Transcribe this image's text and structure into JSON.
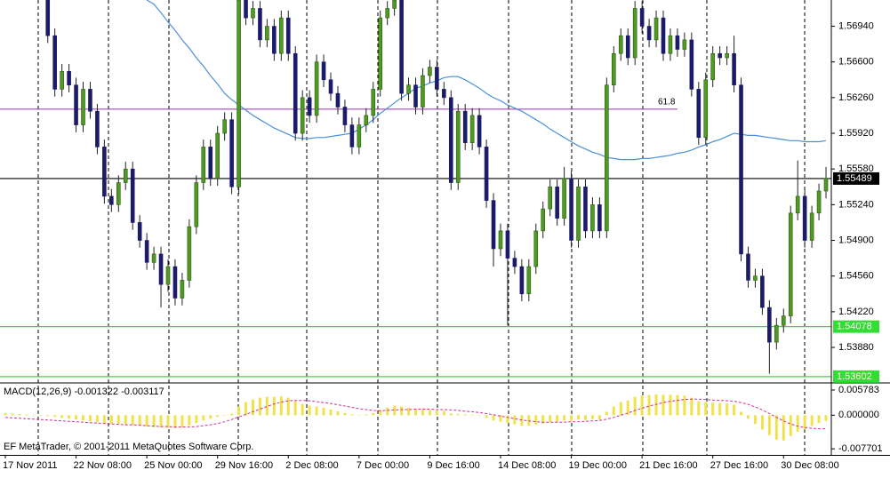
{
  "chart_data": [
    {
      "type": "candlestick",
      "categories": [
        "17 Nov 2011",
        null,
        null,
        null,
        null,
        null,
        null,
        null,
        null,
        null,
        "22 Nov 08:00",
        null,
        null,
        null,
        null,
        null,
        null,
        null,
        null,
        null,
        "25 Nov 00:00",
        null,
        null,
        null,
        null,
        null,
        null,
        null,
        null,
        null,
        "29 Nov 16:00",
        null,
        null,
        null,
        null,
        null,
        null,
        null,
        null,
        null,
        "2 Dec 08:00",
        null,
        null,
        null,
        null,
        null,
        null,
        null,
        null,
        null,
        "7 Dec 00:00",
        null,
        null,
        null,
        null,
        null,
        null,
        null,
        null,
        null,
        "9 Dec 16:00",
        null,
        null,
        null,
        null,
        null,
        null,
        null,
        null,
        null,
        "14 Dec 08:00",
        null,
        null,
        null,
        null,
        null,
        null,
        null,
        null,
        null,
        "19 Dec 00:00",
        null,
        null,
        null,
        null,
        null,
        null,
        null,
        null,
        null,
        "21 Dec 16:00",
        null,
        null,
        null,
        null,
        null,
        null,
        null,
        null,
        null,
        "27 Dec 16:00",
        null,
        null,
        null,
        null,
        null,
        null,
        null,
        null,
        null,
        "30 Dec 08:00",
        null,
        null,
        null,
        null,
        null,
        null
      ],
      "open": [
        null,
        null,
        null,
        null,
        null,
        null,
        1.5719,
        1.5685,
        1.5634,
        1.5651,
        1.5638,
        1.56,
        1.5634,
        1.5613,
        1.5579,
        1.5532,
        1.5524,
        1.5545,
        1.5558,
        1.5507,
        1.549,
        1.5469,
        1.5477,
        1.5448,
        1.5465,
        1.5435,
        1.5452,
        1.5503,
        1.5545,
        1.5579,
        1.5549,
        1.5592,
        1.5605,
        1.5541,
        1.5719,
        1.5702,
        1.5711,
        1.5681,
        1.5694,
        1.5668,
        1.5702,
        1.5668,
        1.5592,
        1.5626,
        1.5609,
        1.566,
        1.5643,
        1.563,
        1.5617,
        1.56,
        1.5579,
        1.56,
        1.5609,
        1.5634,
        1.5702,
        1.5711,
        1.5719,
        1.563,
        1.5638,
        1.5617,
        1.5647,
        1.5655,
        1.5634,
        1.5626,
        1.5545,
        1.5613,
        1.5583,
        1.5609,
        1.5579,
        1.5528,
        1.5482,
        1.5499,
        1.5473,
        1.5465,
        1.5439,
        1.5465,
        1.5499,
        1.552,
        1.5541,
        1.5511,
        1.5549,
        1.549,
        1.5541,
        1.5499,
        1.5524,
        1.5499,
        1.5638,
        1.5668,
        1.5685,
        1.5664,
        1.5711,
        1.5694,
        1.5681,
        1.5702,
        1.5668,
        1.5685,
        1.5672,
        1.5681,
        1.5634,
        1.5588,
        1.5643,
        1.5668,
        1.5664,
        1.5668,
        1.5638,
        1.5477,
        1.5452,
        1.5456,
        1.5426,
        1.5393,
        1.5409,
        1.5418,
        1.5516,
        1.5532,
        1.549,
        1.5516,
        1.5537
      ],
      "high": [
        null,
        null,
        null,
        null,
        null,
        null,
        1.5726,
        1.5692,
        1.5658,
        1.5658,
        1.5645,
        1.5641,
        1.5641,
        1.562,
        1.5586,
        1.5539,
        1.5552,
        1.5565,
        1.5565,
        1.5514,
        1.5497,
        1.5484,
        1.5484,
        1.5472,
        1.5472,
        1.5459,
        1.551,
        1.5552,
        1.5586,
        1.5586,
        1.5599,
        1.5612,
        1.5612,
        1.5726,
        1.5726,
        1.5718,
        1.5718,
        1.5701,
        1.5701,
        1.5709,
        1.5709,
        1.5675,
        1.5633,
        1.5633,
        1.5667,
        1.5667,
        1.565,
        1.5637,
        1.5624,
        1.5607,
        1.5607,
        1.5616,
        1.5641,
        1.5709,
        1.5718,
        1.5726,
        1.5726,
        1.5645,
        1.5645,
        1.5654,
        1.5662,
        1.5662,
        1.5641,
        1.5633,
        1.562,
        1.562,
        1.5616,
        1.5616,
        1.5586,
        1.5535,
        1.5506,
        1.5506,
        1.548,
        1.5472,
        1.5472,
        1.5506,
        1.5527,
        1.5548,
        1.5548,
        1.556,
        1.5556,
        1.5548,
        1.5548,
        1.5531,
        1.5531,
        1.5645,
        1.5675,
        1.5692,
        1.5692,
        1.5718,
        1.5718,
        1.5701,
        1.5709,
        1.5709,
        1.5692,
        1.5692,
        1.5688,
        1.5688,
        1.5641,
        1.565,
        1.5675,
        1.5675,
        1.5675,
        1.5685,
        1.5645,
        1.5484,
        1.5463,
        1.5463,
        1.5433,
        1.5416,
        1.5425,
        1.5523,
        1.5566,
        1.5539,
        1.5523,
        1.5544,
        1.556
      ],
      "low": [
        null,
        null,
        null,
        null,
        null,
        null,
        1.5678,
        1.5627,
        1.5627,
        1.5631,
        1.5593,
        1.5593,
        1.5606,
        1.5572,
        1.5525,
        1.5517,
        1.5517,
        1.5538,
        1.55,
        1.5483,
        1.5462,
        1.5462,
        1.5426,
        1.5441,
        1.5428,
        1.5428,
        1.5445,
        1.5496,
        1.5538,
        1.5542,
        1.5542,
        1.5585,
        1.5534,
        1.5534,
        1.5695,
        1.5695,
        1.5674,
        1.5674,
        1.5661,
        1.5661,
        1.5661,
        1.5585,
        1.5585,
        1.5602,
        1.5602,
        1.5636,
        1.5623,
        1.561,
        1.5593,
        1.5572,
        1.5572,
        1.5593,
        1.5602,
        1.5627,
        1.5695,
        1.5704,
        1.5623,
        1.5623,
        1.561,
        1.561,
        1.564,
        1.5627,
        1.5619,
        1.5538,
        1.5538,
        1.5576,
        1.5576,
        1.5572,
        1.5521,
        1.5465,
        1.5475,
        1.5409,
        1.5458,
        1.5432,
        1.5432,
        1.5458,
        1.5492,
        1.5513,
        1.5504,
        1.5504,
        1.5483,
        1.5483,
        1.5492,
        1.5492,
        1.5492,
        1.5492,
        1.5631,
        1.5661,
        1.5657,
        1.5657,
        1.5687,
        1.5674,
        1.5674,
        1.5661,
        1.5661,
        1.5665,
        1.5665,
        1.5627,
        1.5581,
        1.5581,
        1.5636,
        1.5657,
        1.5657,
        1.5631,
        1.547,
        1.5445,
        1.5445,
        1.5419,
        1.5363,
        1.5386,
        1.5402,
        1.5411,
        1.5509,
        1.5483,
        1.5483,
        1.5509,
        1.553
      ],
      "close": [
        null,
        null,
        null,
        null,
        null,
        null,
        1.5685,
        1.5634,
        1.5651,
        1.5638,
        1.56,
        1.5634,
        1.5613,
        1.5579,
        1.5532,
        1.5524,
        1.5545,
        1.5558,
        1.5507,
        1.549,
        1.5469,
        1.5477,
        1.5448,
        1.5465,
        1.5435,
        1.5452,
        1.5503,
        1.5545,
        1.5579,
        1.5549,
        1.5592,
        1.5605,
        1.5541,
        1.5719,
        1.5702,
        1.5711,
        1.5681,
        1.5694,
        1.5668,
        1.5702,
        1.5668,
        1.5592,
        1.5626,
        1.5609,
        1.566,
        1.5643,
        1.563,
        1.5617,
        1.56,
        1.5579,
        1.56,
        1.5609,
        1.5634,
        1.5702,
        1.5711,
        1.5719,
        1.563,
        1.5638,
        1.5617,
        1.5647,
        1.5655,
        1.5634,
        1.5626,
        1.5545,
        1.5613,
        1.5583,
        1.5609,
        1.5579,
        1.5528,
        1.5482,
        1.5499,
        1.5473,
        1.5465,
        1.5439,
        1.5465,
        1.5499,
        1.552,
        1.5541,
        1.5511,
        1.5549,
        1.549,
        1.5541,
        1.5499,
        1.5524,
        1.5499,
        1.5638,
        1.5668,
        1.5685,
        1.5664,
        1.5711,
        1.5694,
        1.5681,
        1.5702,
        1.5668,
        1.5685,
        1.5672,
        1.5681,
        1.5634,
        1.5588,
        1.5643,
        1.5668,
        1.5664,
        1.5668,
        1.5638,
        1.5477,
        1.5452,
        1.5456,
        1.5426,
        1.5393,
        1.5409,
        1.5418,
        1.5516,
        1.5532,
        1.549,
        1.5516,
        1.5537,
        1.5549
      ],
      "bull_color": "#4f9a22",
      "bear_color": "#1b1b6a",
      "wick_color": "#222222",
      "ma": {
        "color": "#4a90d9",
        "values": [
          null,
          null,
          null,
          null,
          null,
          null,
          null,
          null,
          null,
          null,
          null,
          null,
          null,
          null,
          null,
          null,
          null,
          null,
          null,
          null,
          1.5719,
          1.5715,
          1.5707,
          1.5698,
          1.569,
          1.5681,
          1.5673,
          1.5664,
          1.5656,
          1.5647,
          1.5639,
          1.563,
          1.5624,
          1.5619,
          1.5614,
          1.5609,
          1.5605,
          1.5601,
          1.5597,
          1.5594,
          1.5591,
          1.5588,
          1.5587,
          1.5587,
          1.5588,
          1.5588,
          1.5589,
          1.559,
          1.5591,
          1.5592,
          1.5596,
          1.56,
          1.5605,
          1.5611,
          1.5616,
          1.5621,
          1.5626,
          1.563,
          1.5635,
          1.5637,
          1.564,
          1.5642,
          1.5645,
          1.5646,
          1.5646,
          1.5643,
          1.5639,
          1.5635,
          1.563,
          1.5626,
          1.5623,
          1.5619,
          1.5616,
          1.5613,
          1.5609,
          1.5605,
          1.5601,
          1.5596,
          1.5592,
          1.5588,
          1.5584,
          1.558,
          1.5577,
          1.5574,
          1.5572,
          1.5569,
          1.5568,
          1.5567,
          1.5567,
          1.5567,
          1.5568,
          1.5568,
          1.5569,
          1.557,
          1.5571,
          1.5573,
          1.5574,
          1.5576,
          1.5579,
          1.5581,
          1.5584,
          1.5586,
          1.5589,
          1.5592,
          1.5591,
          1.559,
          1.559,
          1.5589,
          1.5588,
          1.5587,
          1.5586,
          1.5585,
          1.5585,
          1.5584,
          1.5584,
          1.5584,
          1.5585
        ]
      },
      "levels": [
        {
          "value": 1.55489,
          "color": "#000000"
        },
        {
          "value": 1.54078,
          "color": "#33dd33"
        },
        {
          "value": 1.53602,
          "color": "#33dd33"
        }
      ],
      "fib": {
        "value": 1.5615,
        "ratio": 61.8,
        "color": "#9b2fae"
      },
      "ylim": [
        1.5355,
        1.5719
      ],
      "yticks": [
        {
          "value": 1.5694,
          "label": "1.56940"
        },
        {
          "value": 1.566,
          "label": "1.56600"
        },
        {
          "value": 1.5626,
          "label": "1.56260"
        },
        {
          "value": 1.5592,
          "label": "1.55920"
        },
        {
          "value": 1.5558,
          "label": "1.55580"
        },
        {
          "value": 1.5524,
          "label": "1.55240"
        },
        {
          "value": 1.549,
          "label": "1.54900"
        },
        {
          "value": 1.5456,
          "label": "1.54560"
        },
        {
          "value": 1.5422,
          "label": "1.54220"
        },
        {
          "value": 1.5388,
          "label": "1.53880"
        }
      ]
    },
    {
      "type": "macd",
      "label": "MACD(12,26,9) -0.001322 -0.003117",
      "histogram": {
        "color": "#f2e24a",
        "values": [
          0.0005,
          0.0004,
          0.0003,
          0.0002,
          0.0001,
          0,
          -0.0002,
          -0.0004,
          -0.0006,
          -0.0008,
          -0.001,
          -0.0012,
          -0.0014,
          -0.0016,
          -0.0018,
          -0.002,
          -0.002,
          -0.0021,
          -0.0022,
          -0.0024,
          -0.0026,
          -0.0027,
          -0.0028,
          -0.0029,
          -0.003,
          -0.0028,
          -0.0024,
          -0.0018,
          -0.0012,
          -0.0008,
          -0.0004,
          0,
          0.0004,
          0.002,
          0.003,
          0.0036,
          0.004,
          0.0042,
          0.0042,
          0.0043,
          0.004,
          0.0032,
          0.0026,
          0.0022,
          0.002,
          0.0017,
          0.0013,
          0.0009,
          0.0005,
          0.0002,
          0.0001,
          0.0002,
          0.0005,
          0.0012,
          0.0018,
          0.0022,
          0.002,
          0.0017,
          0.0014,
          0.0013,
          0.0012,
          0.0011,
          0.001,
          0.0004,
          0.0003,
          0.0002,
          0.0001,
          -0.0001,
          -0.0006,
          -0.0012,
          -0.0015,
          -0.0018,
          -0.0021,
          -0.0024,
          -0.0024,
          -0.0022,
          -0.0019,
          -0.0016,
          -0.0015,
          -0.0012,
          -0.0013,
          -0.001,
          -0.0011,
          -0.0009,
          -0.001,
          0.0008,
          0.002,
          0.003,
          0.0034,
          0.0042,
          0.0045,
          0.0046,
          0.0048,
          0.0047,
          0.0047,
          0.0046,
          0.0045,
          0.004,
          0.0032,
          0.003,
          0.0029,
          0.0028,
          0.0027,
          0.0024,
          0.0008,
          -0.0008,
          -0.002,
          -0.0033,
          -0.0046,
          -0.0056,
          -0.0058,
          -0.0048,
          -0.0038,
          -0.0033,
          -0.0025,
          -0.0018,
          -0.001322
        ]
      },
      "signal": {
        "color": "#d0309a",
        "values": [
          -0.0005,
          -0.0006,
          -0.0007,
          -0.0008,
          -0.0009,
          -0.001,
          -0.0011,
          -0.0012,
          -0.0013,
          -0.0014,
          -0.0015,
          -0.0016,
          -0.0017,
          -0.0018,
          -0.0019,
          -0.002,
          -0.0021,
          -0.0022,
          -0.0022,
          -0.0023,
          -0.0024,
          -0.0025,
          -0.0026,
          -0.0026,
          -0.0027,
          -0.0027,
          -0.0027,
          -0.0026,
          -0.0024,
          -0.0022,
          -0.0019,
          -0.0015,
          -0.001,
          -0.0004,
          0.0002,
          0.0008,
          0.0014,
          0.002,
          0.0026,
          0.003,
          0.0033,
          0.0034,
          0.0034,
          0.0033,
          0.0031,
          0.0029,
          0.0027,
          0.0024,
          0.0021,
          0.0018,
          0.0015,
          0.0013,
          0.0011,
          0.001,
          0.0011,
          0.0012,
          0.0013,
          0.0013,
          0.0014,
          0.0014,
          0.0014,
          0.0013,
          0.0013,
          0.0012,
          0.0011,
          0.0009,
          0.0008,
          0.0006,
          0.0004,
          0.0001,
          -0.0002,
          -0.0005,
          -0.0008,
          -0.0011,
          -0.0013,
          -0.0015,
          -0.0016,
          -0.0016,
          -0.0016,
          -0.0016,
          -0.0015,
          -0.0015,
          -0.0014,
          -0.0013,
          -0.0012,
          -0.0009,
          -0.0005,
          0,
          0.0005,
          0.0011,
          0.0016,
          0.0021,
          0.0025,
          0.0029,
          0.0032,
          0.0034,
          0.0036,
          0.0037,
          0.0037,
          0.0036,
          0.0035,
          0.0034,
          0.0033,
          0.0032,
          0.0029,
          0.0025,
          0.0019,
          0.0012,
          0.0004,
          -0.0005,
          -0.0013,
          -0.002,
          -0.0025,
          -0.0028,
          -0.003,
          -0.0031,
          -0.003117
        ]
      },
      "ylim": [
        -0.0091,
        0.0072
      ],
      "yticks": [
        0.005783,
        {
          "value": 0,
          "label": "0.000000"
        },
        -0.007701
      ]
    }
  ],
  "footer": "EF MetaTrader, © 2001-2011 MetaQuotes Software Corp."
}
